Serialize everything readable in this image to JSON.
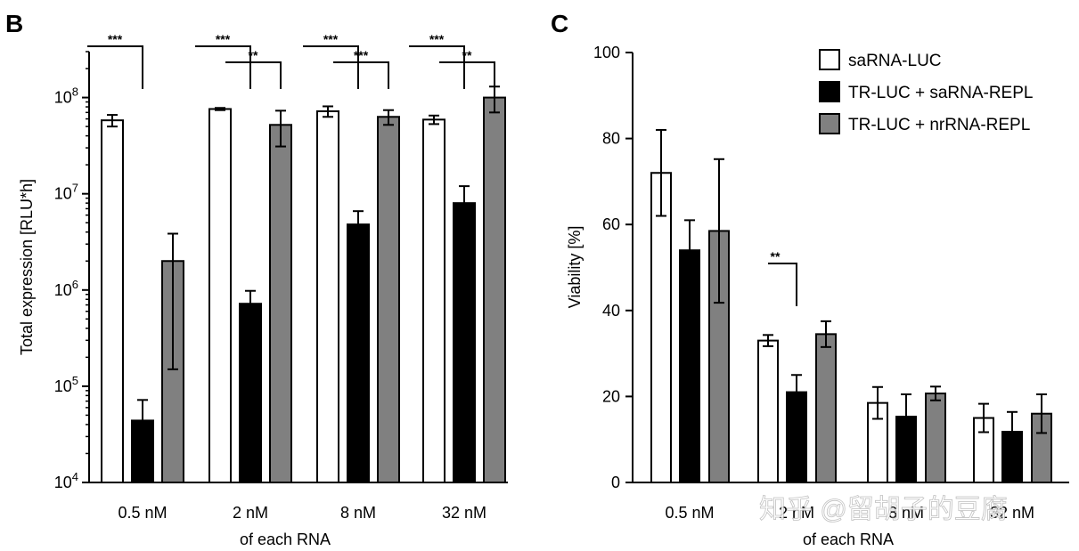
{
  "watermark": "知乎 @留胡子的豆腐",
  "chart_data": [
    {
      "panel": "B",
      "type": "bar",
      "yscale": "log",
      "ylabel": "Total expression [RLU*h]",
      "xlabel": "of each RNA",
      "ylim": [
        10000,
        300000000
      ],
      "yticks": [
        {
          "label": "10",
          "exp": "4",
          "value": 10000
        },
        {
          "label": "10",
          "exp": "5",
          "value": 100000
        },
        {
          "label": "10",
          "exp": "6",
          "value": 1000000
        },
        {
          "label": "10",
          "exp": "7",
          "value": 10000000
        },
        {
          "label": "10",
          "exp": "8",
          "value": 100000000
        }
      ],
      "categories": [
        "0.5 nM",
        "2 nM",
        "8 nM",
        "32 nM"
      ],
      "series": [
        {
          "name": "saRNA-LUC",
          "color": "#ffffff",
          "values": [
            58000000,
            76000000,
            72000000,
            59000000
          ],
          "errors": [
            8000000,
            2000000,
            9000000,
            6000000
          ]
        },
        {
          "name": "TR-LUC + saRNA-REPL",
          "color": "#000000",
          "values": [
            44000,
            720000,
            4800000,
            8000000
          ],
          "errors": [
            28000,
            260000,
            1800000,
            4000000
          ]
        },
        {
          "name": "TR-LUC + nrRNA-REPL",
          "color": "#808080",
          "values": [
            2000000,
            52000000,
            63000000,
            100000000
          ],
          "errors": [
            1850000,
            21000000,
            11000000,
            30000000
          ]
        }
      ],
      "significance": [
        {
          "category": 0,
          "from": 0,
          "to": 1,
          "label": "***"
        },
        {
          "category": 1,
          "from": 0,
          "to": 1,
          "label": "***"
        },
        {
          "category": 1,
          "from": 1,
          "to": 2,
          "label": "**"
        },
        {
          "category": 2,
          "from": 0,
          "to": 1,
          "label": "***"
        },
        {
          "category": 2,
          "from": 1,
          "to": 2,
          "label": "***"
        },
        {
          "category": 3,
          "from": 0,
          "to": 1,
          "label": "***"
        },
        {
          "category": 3,
          "from": 1,
          "to": 2,
          "label": "**"
        }
      ]
    },
    {
      "panel": "C",
      "type": "bar",
      "yscale": "linear",
      "ylabel": "Viability [%]",
      "xlabel": "of each RNA",
      "ylim": [
        0,
        100
      ],
      "yticks": [
        0,
        20,
        40,
        60,
        80,
        100
      ],
      "categories": [
        "0.5 nM",
        "2 nM",
        "8 nM",
        "32 nM"
      ],
      "series": [
        {
          "name": "saRNA-LUC",
          "color": "#ffffff",
          "values": [
            72,
            33,
            18.5,
            15
          ],
          "errors": [
            10,
            1.3,
            3.7,
            3.3
          ]
        },
        {
          "name": "TR-LUC + saRNA-REPL",
          "color": "#000000",
          "values": [
            54,
            21,
            15.3,
            11.8
          ],
          "errors": [
            7,
            4,
            5.2,
            4.6
          ]
        },
        {
          "name": "TR-LUC + nrRNA-REPL",
          "color": "#808080",
          "values": [
            58.5,
            34.5,
            20.7,
            16
          ],
          "errors": [
            16.7,
            3,
            1.6,
            4.5
          ]
        }
      ],
      "significance": [
        {
          "category": 1,
          "from": 0,
          "to": 1,
          "label": "**"
        }
      ],
      "legend": [
        {
          "label": "saRNA-LUC",
          "color": "#ffffff"
        },
        {
          "label": "TR-LUC + saRNA-REPL",
          "color": "#000000"
        },
        {
          "label": "TR-LUC + nrRNA-REPL",
          "color": "#808080"
        }
      ]
    }
  ]
}
